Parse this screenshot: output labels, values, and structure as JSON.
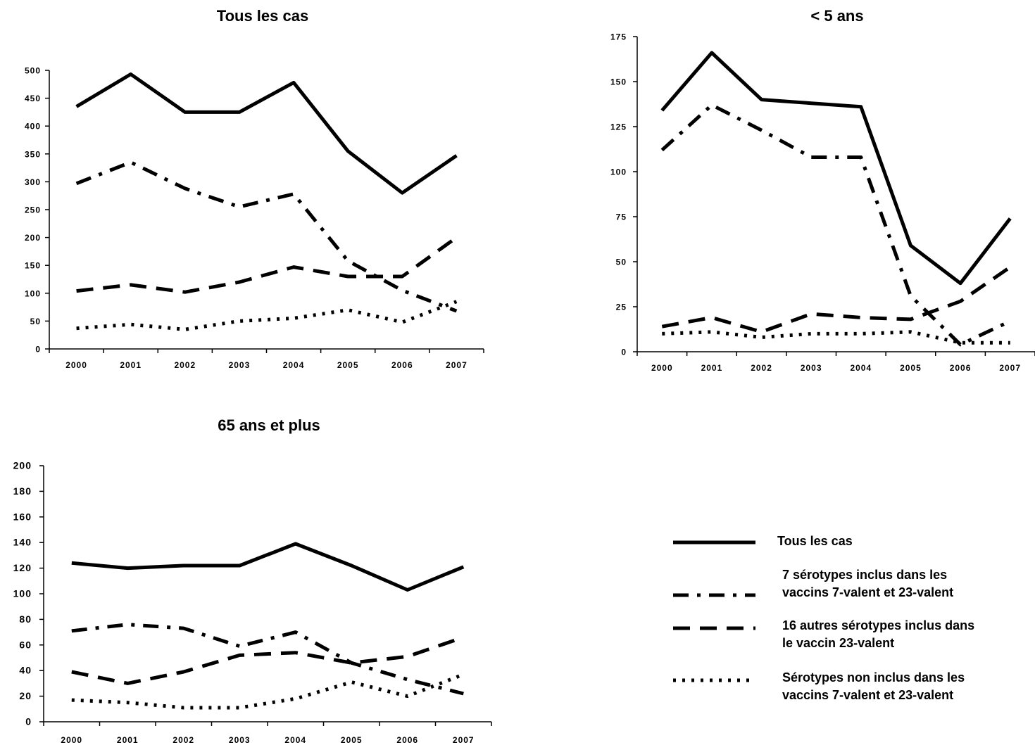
{
  "chart_data": [
    {
      "type": "line",
      "title": "Tous les cas",
      "categories": [
        "2000",
        "2001",
        "2002",
        "2003",
        "2004",
        "2005",
        "2006",
        "2007"
      ],
      "ylim": [
        0,
        500
      ],
      "yticks": [
        0,
        50,
        100,
        150,
        200,
        250,
        300,
        350,
        400,
        450,
        500
      ],
      "series": [
        {
          "name": "Tous les cas",
          "style": "solid",
          "values": [
            435,
            493,
            425,
            425,
            478,
            355,
            280,
            347
          ]
        },
        {
          "name": "7 sérotypes inclus dans les vaccins 7-valent et 23-valent",
          "style": "dashdot",
          "values": [
            297,
            335,
            288,
            255,
            278,
            158,
            105,
            68
          ]
        },
        {
          "name": "16 autres sérotypes inclus dans le vaccin 23-valent",
          "style": "dash",
          "values": [
            104,
            115,
            102,
            120,
            147,
            130,
            130,
            200
          ]
        },
        {
          "name": "Sérotypes non inclus dans les vaccins 7-valent et 23-valent",
          "style": "dot",
          "values": [
            37,
            44,
            35,
            50,
            55,
            70,
            48,
            85
          ]
        }
      ]
    },
    {
      "type": "line",
      "title": "< 5 ans",
      "categories": [
        "2000",
        "2001",
        "2002",
        "2003",
        "2004",
        "2005",
        "2006",
        "2007"
      ],
      "ylim": [
        0,
        175
      ],
      "yticks": [
        0,
        25,
        50,
        75,
        100,
        125,
        150,
        175
      ],
      "series": [
        {
          "name": "Tous les cas",
          "style": "solid",
          "values": [
            134,
            166,
            140,
            138,
            136,
            59,
            38,
            74
          ]
        },
        {
          "name": "7 sérotypes inclus dans les vaccins 7-valent et 23-valent",
          "style": "dashdot",
          "values": [
            112,
            137,
            123,
            108,
            108,
            31,
            4,
            17
          ]
        },
        {
          "name": "16 autres sérotypes inclus dans le vaccin 23-valent",
          "style": "dash",
          "values": [
            14,
            19,
            11,
            21,
            19,
            18,
            28,
            47
          ]
        },
        {
          "name": "Sérotypes non inclus dans les vaccins 7-valent et 23-valent",
          "style": "dot",
          "values": [
            10,
            11,
            8,
            10,
            10,
            11,
            5,
            5
          ]
        }
      ]
    },
    {
      "type": "line",
      "title": "65 ans et plus",
      "categories": [
        "2000",
        "2001",
        "2002",
        "2003",
        "2004",
        "2005",
        "2006",
        "2007"
      ],
      "ylim": [
        0,
        200
      ],
      "yticks": [
        0,
        20,
        40,
        60,
        80,
        100,
        120,
        140,
        160,
        180,
        200
      ],
      "series": [
        {
          "name": "Tous les cas",
          "style": "solid",
          "values": [
            124,
            120,
            122,
            122,
            139,
            122,
            103,
            121
          ]
        },
        {
          "name": "7 sérotypes inclus dans les vaccins 7-valent et 23-valent",
          "style": "dashdot",
          "values": [
            71,
            76,
            73,
            59,
            70,
            46,
            33,
            22
          ]
        },
        {
          "name": "16 autres sérotypes inclus dans le vaccin 23-valent",
          "style": "dash",
          "values": [
            39,
            30,
            39,
            52,
            54,
            46,
            51,
            66
          ]
        },
        {
          "name": "Sérotypes non inclus dans les vaccins 7-valent et 23-valent",
          "style": "dot",
          "values": [
            17,
            15,
            11,
            11,
            18,
            31,
            20,
            37
          ]
        }
      ]
    }
  ],
  "legend": {
    "items": [
      {
        "style": "solid",
        "lines": [
          "Tous les cas"
        ]
      },
      {
        "style": "dashdot",
        "lines": [
          "7 sérotypes inclus dans les",
          "vaccins 7-valent et 23-valent"
        ]
      },
      {
        "style": "dash",
        "lines": [
          "16 autres sérotypes inclus dans",
          "le vaccin 23-valent"
        ]
      },
      {
        "style": "dot",
        "lines": [
          "Sérotypes non inclus dans les",
          "vaccins 7-valent et 23-valent"
        ]
      }
    ]
  }
}
